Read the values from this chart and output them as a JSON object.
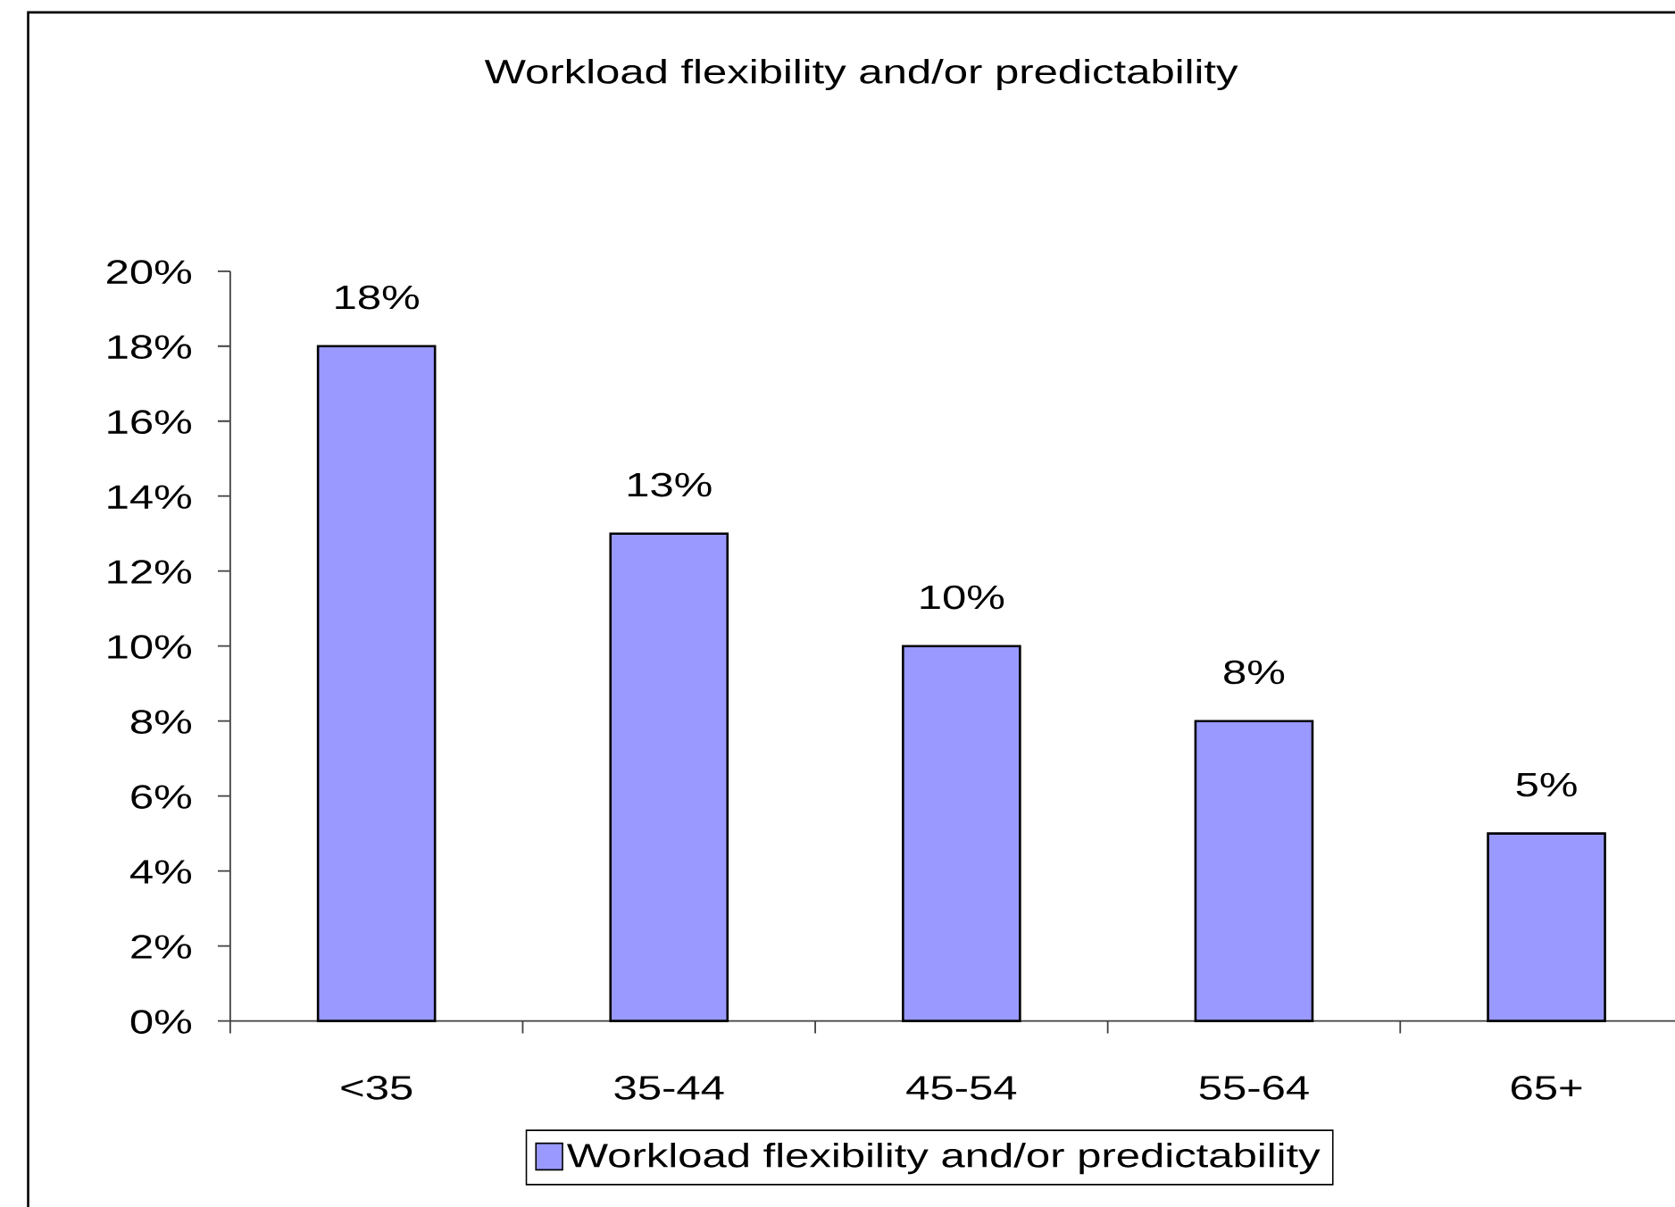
{
  "chart_data": {
    "type": "bar",
    "title": "Workload flexibility and/or predictability",
    "categories": [
      "<35",
      "35-44",
      "45-54",
      "55-64",
      "65+"
    ],
    "series": [
      {
        "name": "Workload flexibility and/or predictability",
        "color": "#9999ff",
        "values": [
          18,
          13,
          10,
          8,
          5
        ],
        "value_labels": [
          "18%",
          "13%",
          "10%",
          "8%",
          "5%"
        ]
      }
    ],
    "ylim": [
      0,
      20
    ],
    "yticks": [
      {
        "value": 0,
        "label": "0%"
      },
      {
        "value": 2,
        "label": "2%"
      },
      {
        "value": 4,
        "label": "4%"
      },
      {
        "value": 6,
        "label": "6%"
      },
      {
        "value": 8,
        "label": "8%"
      },
      {
        "value": 10,
        "label": "10%"
      },
      {
        "value": 12,
        "label": "12%"
      },
      {
        "value": 14,
        "label": "14%"
      },
      {
        "value": 16,
        "label": "16%"
      },
      {
        "value": 18,
        "label": "18%"
      },
      {
        "value": 20,
        "label": "20%"
      }
    ],
    "legend": "bottom"
  }
}
